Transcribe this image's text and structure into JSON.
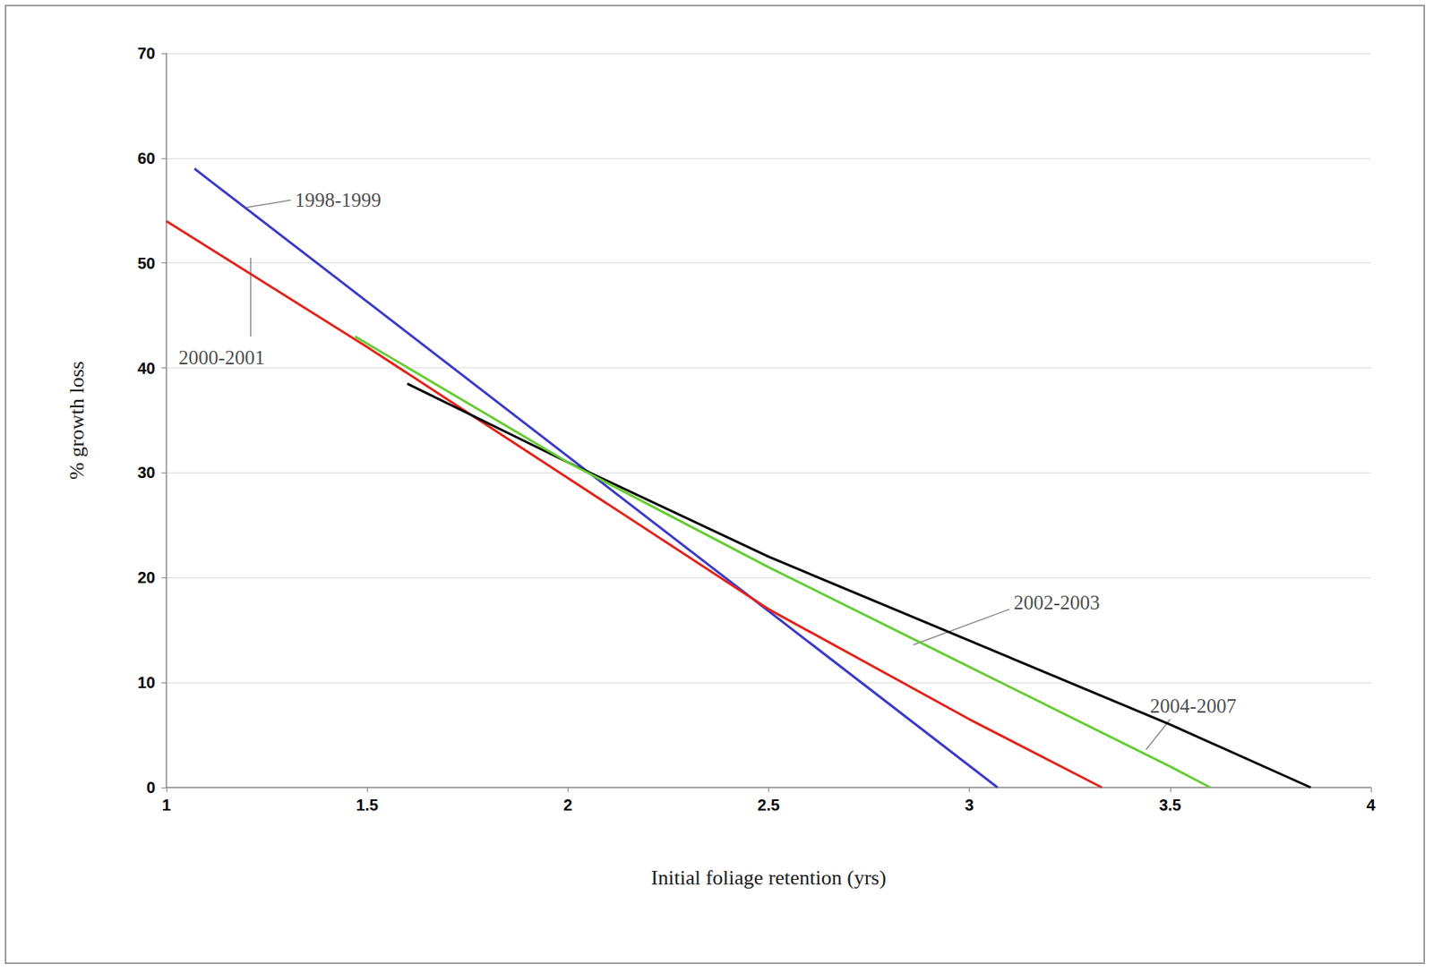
{
  "chart_data": {
    "type": "line",
    "x_label": "Initial foliage retention (yrs)",
    "y_label": "% growth loss",
    "xlim": [
      1,
      4
    ],
    "xticks": [
      1,
      1.5,
      2,
      2.5,
      3,
      3.5,
      4
    ],
    "ylim": [
      0,
      70
    ],
    "yticks": [
      0,
      10,
      20,
      30,
      40,
      50,
      60,
      70
    ],
    "grid": true,
    "series": [
      {
        "name": "1998-1999",
        "color": "#3a3ac8",
        "x": [
          1.07,
          3.07
        ],
        "values": [
          59,
          0
        ]
      },
      {
        "name": "2000-2001",
        "color": "#e2231a",
        "x": [
          1.0,
          1.5,
          2.0,
          2.5,
          3.0,
          3.33
        ],
        "values": [
          54,
          42,
          29.5,
          17,
          6.5,
          0
        ]
      },
      {
        "name": "2002-2003",
        "color": "#000000",
        "x": [
          1.6,
          2.0,
          2.5,
          3.0,
          3.5,
          3.85
        ],
        "values": [
          38.5,
          31,
          22,
          14,
          6,
          0
        ]
      },
      {
        "name": "2004-2007",
        "color": "#66cc33",
        "x": [
          1.47,
          2.0,
          2.5,
          3.0,
          3.5,
          3.6
        ],
        "values": [
          43,
          31,
          21,
          11.5,
          2,
          0
        ]
      }
    ],
    "annotations": [
      {
        "text": "1998-1999",
        "x": 1.32,
        "y": 56,
        "arrow": [
          [
            1.2,
            55.3
          ],
          [
            1.31,
            56
          ]
        ]
      },
      {
        "text": "2000-2001",
        "x": 1.03,
        "y": 41,
        "arrow": [
          [
            1.21,
            50.5
          ],
          [
            1.21,
            43
          ]
        ]
      },
      {
        "text": "2002-2003",
        "x": 3.11,
        "y": 17.6,
        "arrow": [
          [
            2.86,
            13.6
          ],
          [
            3.1,
            17
          ]
        ]
      },
      {
        "text": "2004-2007",
        "x": 3.45,
        "y": 7.8,
        "arrow": [
          [
            3.44,
            3.6
          ],
          [
            3.5,
            6.5
          ]
        ]
      }
    ]
  }
}
